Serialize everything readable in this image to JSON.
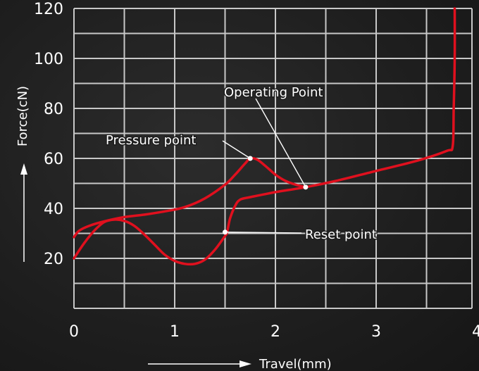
{
  "chart_data": {
    "type": "line",
    "xlabel": "Travel(mm)",
    "ylabel": "Force(cN)",
    "xlim": [
      0,
      3.8
    ],
    "ylim": [
      0,
      120
    ],
    "x_ticks": [
      "0",
      "1",
      "2",
      "3",
      "4"
    ],
    "y_ticks": [
      "120",
      "100",
      "80",
      "60",
      "40",
      "20"
    ],
    "grid": true,
    "series": [
      {
        "color": "#e0101e",
        "points": [
          [
            0,
            20
          ],
          [
            0.1,
            26
          ],
          [
            0.2,
            31
          ],
          [
            0.3,
            34.5
          ],
          [
            0.4,
            35.5
          ],
          [
            0.5,
            35
          ],
          [
            0.6,
            33
          ],
          [
            0.7,
            29.5
          ],
          [
            0.8,
            25.5
          ],
          [
            0.9,
            21.5
          ],
          [
            1.0,
            19
          ],
          [
            1.1,
            17.8
          ],
          [
            1.2,
            17.8
          ],
          [
            1.3,
            19.5
          ],
          [
            1.4,
            23.5
          ],
          [
            1.5,
            29
          ],
          [
            1.52,
            30.5
          ],
          [
            1.55,
            36
          ],
          [
            1.6,
            41
          ],
          [
            1.65,
            43.5
          ],
          [
            1.75,
            44.5
          ],
          [
            2.0,
            46.5
          ],
          [
            2.3,
            48.5
          ],
          [
            2.6,
            51
          ],
          [
            3.0,
            55
          ],
          [
            3.4,
            59
          ],
          [
            3.7,
            63
          ],
          [
            3.76,
            65
          ],
          [
            3.77,
            80
          ],
          [
            3.78,
            100
          ],
          [
            3.78,
            120
          ]
        ]
      },
      {
        "color": "#e0101e",
        "points": [
          [
            0,
            28.5
          ],
          [
            0.05,
            31
          ],
          [
            0.15,
            33
          ],
          [
            0.3,
            34.8
          ],
          [
            0.5,
            36.5
          ],
          [
            0.7,
            37.5
          ],
          [
            0.9,
            38.8
          ],
          [
            1.1,
            40.5
          ],
          [
            1.3,
            44
          ],
          [
            1.5,
            49.5
          ],
          [
            1.6,
            53.5
          ],
          [
            1.7,
            58
          ],
          [
            1.75,
            60
          ],
          [
            1.82,
            59.5
          ],
          [
            1.9,
            57
          ],
          [
            2.0,
            53.5
          ],
          [
            2.1,
            51
          ],
          [
            2.2,
            49.5
          ],
          [
            2.3,
            48.5
          ]
        ]
      }
    ],
    "annotations": [
      {
        "text": "Operating Point",
        "x": 2.3,
        "y": 48.5
      },
      {
        "text": "Pressure point",
        "x": 1.75,
        "y": 60
      },
      {
        "text": "Reset point",
        "x": 1.5,
        "y": 30.5
      }
    ]
  }
}
